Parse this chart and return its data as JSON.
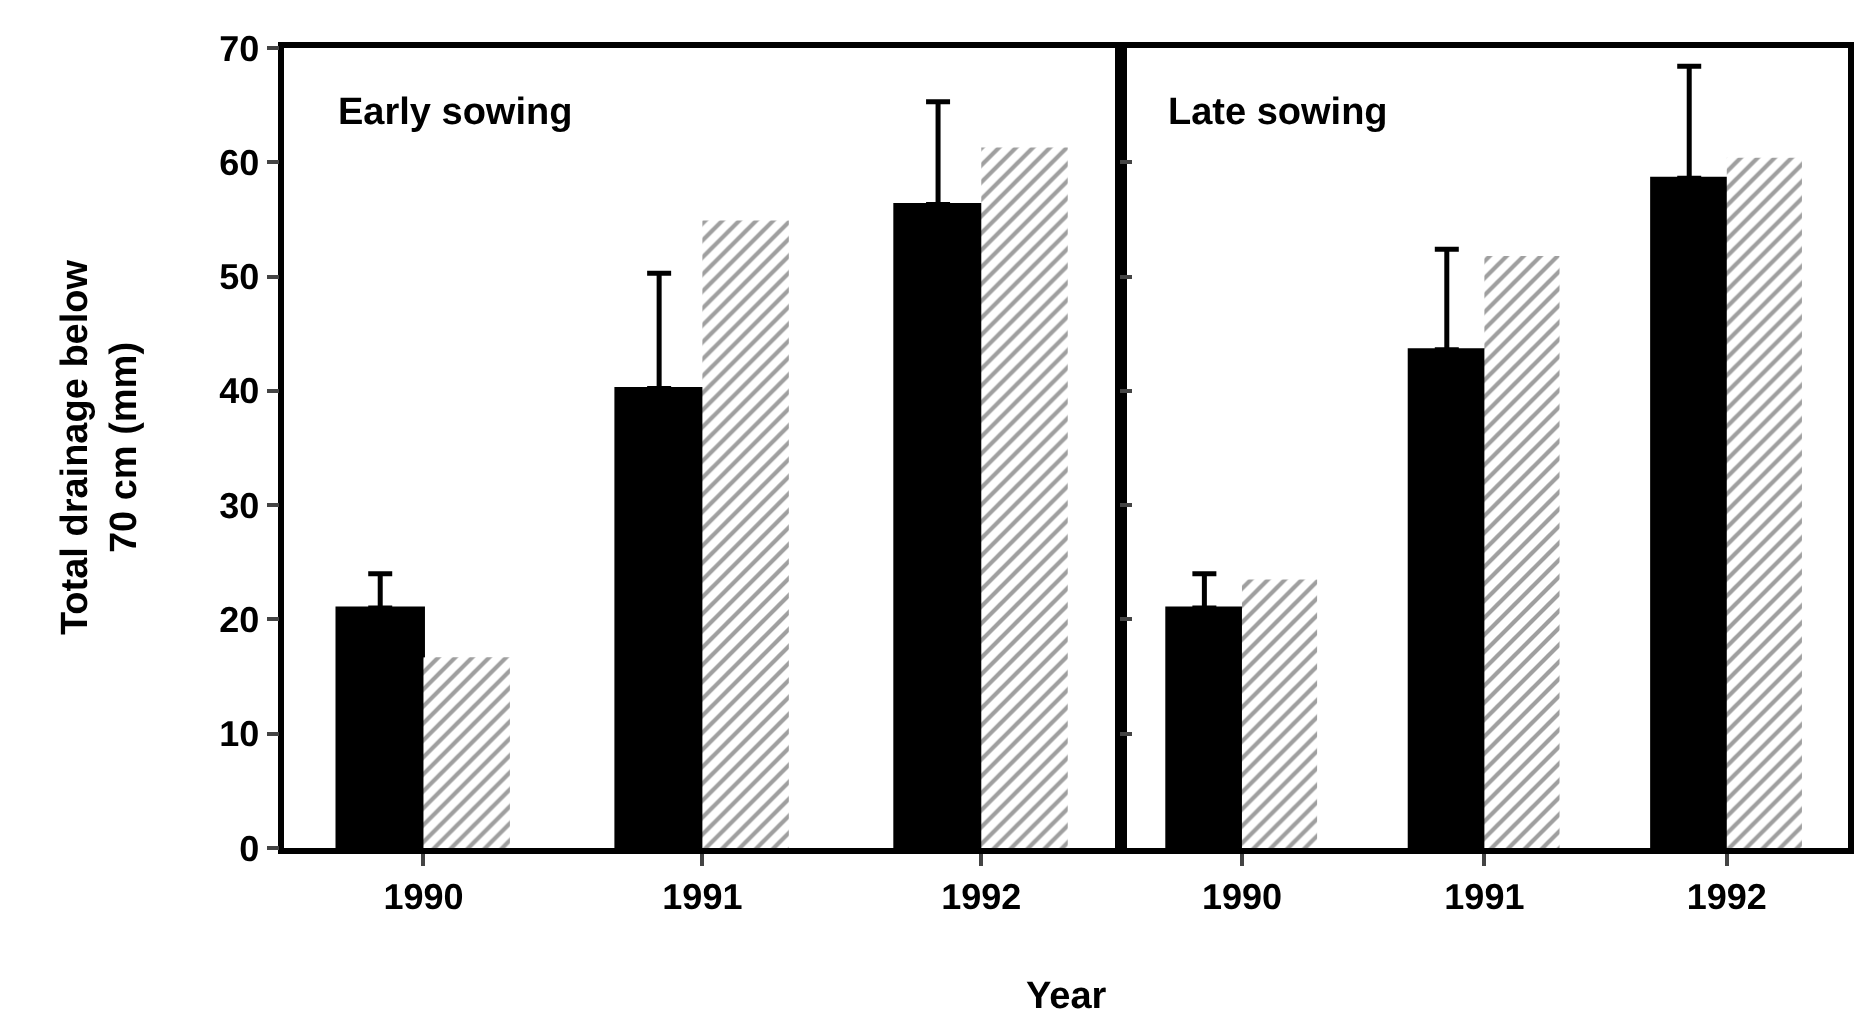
{
  "chart_data": [
    {
      "type": "bar",
      "title": "Early sowing",
      "xlabel": "Year",
      "ylabel": "Total drainage below\n70 cm (mm)",
      "categories": [
        "1990",
        "1991",
        "1992"
      ],
      "ylim": [
        0,
        70
      ],
      "yticks": [
        0,
        10,
        20,
        30,
        40,
        50,
        60,
        70
      ],
      "series": [
        {
          "color": "#000000",
          "values": [
            21,
            40.2,
            56.3
          ],
          "errors": [
            [
              21,
              24
            ],
            [
              40.2,
              50.3
            ],
            [
              56.3,
              65.3
            ]
          ]
        },
        {
          "color": "#404040",
          "values": [
            16.7,
            54.9,
            61.3
          ]
        }
      ]
    },
    {
      "type": "bar",
      "title": "Late sowing",
      "categories": [
        "1990",
        "1991",
        "1992"
      ],
      "ylim": [
        0,
        70
      ],
      "yticks": [
        0,
        10,
        20,
        30,
        40,
        50,
        60,
        70
      ],
      "tick_labels": "x",
      "series": [
        {
          "color": "#000000",
          "values": [
            21,
            43.6,
            58.6
          ],
          "errors": [
            [
              21,
              24
            ],
            [
              43.6,
              52.4
            ],
            [
              58.6,
              68.4
            ]
          ]
        },
        {
          "color": "#404040",
          "values": [
            23.5,
            51.8,
            60.4
          ]
        }
      ]
    }
  ]
}
